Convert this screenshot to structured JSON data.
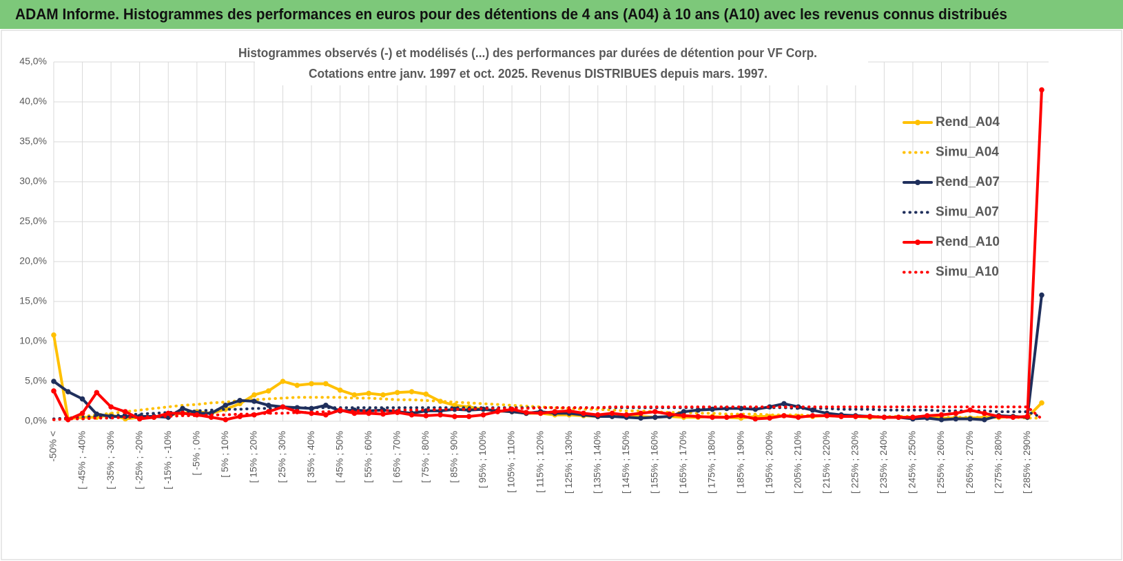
{
  "header": {
    "title": "ADAM Informe. Histogrammes des performances en euros pour des détentions de 4 ans (A04) à 10 ans (A10) avec les revenus connus distribués"
  },
  "chart_data": {
    "type": "line",
    "title": "Histogrammes observés (-) et modélisés (...) des performances par durées de détention pour VF Corp.",
    "subtitle": "Cotations entre janv. 1997 et oct. 2025.  Revenus DISTRIBUES depuis mars. 1997.",
    "categories": [
      "-50% <",
      null,
      "[ -45% ; -40%",
      null,
      "[ -35% ; -30%",
      null,
      "[ -25% ; -20%",
      null,
      "[ -15% ; -10%",
      null,
      "[ -5% ; 0%",
      null,
      "[ 5% ; 10%",
      null,
      "[ 15% ; 20%",
      null,
      "[ 25% ; 30%",
      null,
      "[ 35% ; 40%",
      null,
      "[ 45% ; 50%",
      null,
      "[ 55% ; 60%",
      null,
      "[ 65% ; 70%",
      null,
      "[ 75% ; 80%",
      null,
      "[ 85% ; 90%",
      null,
      "[ 95% ; 100%",
      null,
      "[ 105% ; 110%",
      null,
      "[ 115% ; 120%",
      null,
      "[ 125% ; 130%",
      null,
      "[ 135% ; 140%",
      null,
      "[ 145% ; 150%",
      null,
      "[ 155% ; 160%",
      null,
      "[ 165% ; 170%",
      null,
      "[ 175% ; 180%",
      null,
      "[ 185% ; 190%",
      null,
      "[ 195% ; 200%",
      null,
      "[ 205% ; 210%",
      null,
      "[ 215% ; 220%",
      null,
      "[ 225% ; 230%",
      null,
      "[ 235% ; 240%",
      null,
      "[ 245% ; 250%",
      null,
      "[ 255% ; 260%",
      null,
      "[ 265% ; 270%",
      null,
      "[ 275% ; 280%",
      null,
      "[ 285% ; 290%",
      null
    ],
    "ylim": [
      0,
      45
    ],
    "yticks": [
      {
        "value": 0,
        "label": "0,0%"
      },
      {
        "value": 5,
        "label": "5,0%"
      },
      {
        "value": 10,
        "label": "10,0%"
      },
      {
        "value": 15,
        "label": "15,0%"
      },
      {
        "value": 20,
        "label": "20,0%"
      },
      {
        "value": 25,
        "label": "25,0%"
      },
      {
        "value": 30,
        "label": "30,0%"
      },
      {
        "value": 35,
        "label": "35,0%"
      },
      {
        "value": 40,
        "label": "40,0%"
      },
      {
        "value": 45,
        "label": "45,0%"
      }
    ],
    "grid": true,
    "legend": "right",
    "series": [
      {
        "name": "Rend_A04",
        "color": "#ffc000",
        "line_style": "solid",
        "marker": true,
        "values": [
          10.8,
          0.3,
          0.5,
          0.5,
          0.8,
          0.3,
          0.5,
          0.5,
          0.8,
          1.0,
          1.2,
          1.0,
          1.5,
          2.2,
          3.3,
          3.8,
          5.0,
          4.5,
          4.7,
          4.7,
          3.9,
          3.3,
          3.5,
          3.3,
          3.6,
          3.7,
          3.4,
          2.5,
          2.0,
          1.8,
          1.5,
          1.3,
          1.2,
          1.0,
          1.0,
          0.8,
          0.8,
          0.7,
          0.6,
          0.6,
          0.7,
          0.6,
          0.5,
          0.6,
          0.5,
          0.5,
          0.6,
          0.5,
          0.4,
          0.6,
          0.6,
          0.7,
          0.6,
          0.6,
          0.7,
          0.6,
          0.6,
          0.5,
          0.5,
          0.5,
          0.5,
          0.5,
          0.4,
          0.4,
          0.4,
          0.5,
          0.5,
          0.6,
          0.5,
          2.3
        ]
      },
      {
        "name": "Simu_A04",
        "color": "#ffc000",
        "line_style": "dotted",
        "marker": false,
        "values": [
          0.2,
          0.4,
          0.6,
          0.8,
          1.0,
          1.2,
          1.4,
          1.6,
          1.8,
          2.0,
          2.1,
          2.3,
          2.4,
          2.6,
          2.7,
          2.8,
          2.9,
          3.0,
          3.0,
          3.0,
          3.0,
          2.9,
          2.9,
          2.8,
          2.7,
          2.7,
          2.6,
          2.5,
          2.4,
          2.3,
          2.2,
          2.1,
          2.0,
          1.9,
          1.8,
          1.7,
          1.6,
          1.5,
          1.5,
          1.4,
          1.3,
          1.3,
          1.2,
          1.1,
          1.1,
          1.0,
          1.0,
          0.9,
          0.9,
          0.9,
          0.8,
          0.8,
          0.8,
          0.7,
          0.7,
          0.7,
          0.7,
          0.6,
          0.6,
          0.6,
          0.6,
          0.6,
          0.5,
          0.5,
          0.5,
          0.5,
          0.5,
          0.5,
          0.4,
          0.4
        ]
      },
      {
        "name": "Rend_A07",
        "color": "#1f2f5c",
        "line_style": "solid",
        "marker": true,
        "values": [
          5.0,
          3.7,
          2.8,
          0.9,
          0.6,
          0.6,
          0.6,
          0.6,
          0.5,
          1.6,
          1.0,
          1.0,
          2.0,
          2.6,
          2.5,
          2.0,
          1.8,
          1.7,
          1.6,
          2.0,
          1.3,
          1.4,
          1.3,
          1.4,
          1.2,
          1.0,
          1.3,
          1.3,
          1.5,
          1.4,
          1.5,
          1.3,
          1.2,
          1.0,
          1.2,
          1.0,
          1.0,
          0.8,
          0.6,
          0.6,
          0.5,
          0.4,
          0.5,
          0.6,
          1.2,
          1.4,
          1.5,
          1.6,
          1.6,
          1.5,
          1.8,
          2.2,
          1.8,
          1.4,
          1.0,
          0.8,
          0.7,
          0.6,
          0.5,
          0.5,
          0.3,
          0.4,
          0.2,
          0.3,
          0.3,
          0.2,
          0.7,
          0.6,
          0.5,
          15.8
        ]
      },
      {
        "name": "Simu_A07",
        "color": "#1f2f5c",
        "line_style": "dotted",
        "marker": false,
        "values": [
          0.3,
          0.4,
          0.5,
          0.6,
          0.7,
          0.8,
          0.9,
          1.0,
          1.1,
          1.2,
          1.3,
          1.4,
          1.5,
          1.5,
          1.6,
          1.6,
          1.7,
          1.7,
          1.7,
          1.7,
          1.7,
          1.7,
          1.7,
          1.7,
          1.7,
          1.7,
          1.7,
          1.7,
          1.7,
          1.7,
          1.7,
          1.7,
          1.7,
          1.7,
          1.7,
          1.7,
          1.7,
          1.7,
          1.7,
          1.7,
          1.7,
          1.7,
          1.7,
          1.7,
          1.7,
          1.7,
          1.7,
          1.7,
          1.7,
          1.7,
          1.7,
          1.7,
          1.6,
          1.6,
          1.6,
          1.5,
          1.5,
          1.5,
          1.4,
          1.4,
          1.4,
          1.4,
          1.3,
          1.3,
          1.3,
          1.3,
          1.2,
          1.2,
          1.2,
          0.5
        ]
      },
      {
        "name": "Rend_A10",
        "color": "#ff0000",
        "line_style": "solid",
        "marker": true,
        "values": [
          3.8,
          0.2,
          1.0,
          3.6,
          1.8,
          1.2,
          0.3,
          0.5,
          1.0,
          1.0,
          0.8,
          0.5,
          0.2,
          0.6,
          0.8,
          1.2,
          1.8,
          1.2,
          1.0,
          0.8,
          1.4,
          1.0,
          1.0,
          0.9,
          1.1,
          0.8,
          0.7,
          0.8,
          0.6,
          0.6,
          0.8,
          1.2,
          1.5,
          1.1,
          1.0,
          1.2,
          1.3,
          1.0,
          0.8,
          1.0,
          0.8,
          1.0,
          1.2,
          0.9,
          0.7,
          0.6,
          0.5,
          0.5,
          0.7,
          0.3,
          0.4,
          0.7,
          0.5,
          0.7,
          0.7,
          0.6,
          0.6,
          0.6,
          0.5,
          0.5,
          0.5,
          0.7,
          0.8,
          1.0,
          1.4,
          1.0,
          0.6,
          0.5,
          0.6,
          41.5
        ]
      },
      {
        "name": "Simu_A10",
        "color": "#ff0000",
        "line_style": "dotted",
        "marker": false,
        "values": [
          0.2,
          0.3,
          0.3,
          0.4,
          0.4,
          0.5,
          0.5,
          0.6,
          0.6,
          0.7,
          0.7,
          0.8,
          0.8,
          0.9,
          0.9,
          1.0,
          1.0,
          1.1,
          1.1,
          1.2,
          1.2,
          1.3,
          1.3,
          1.3,
          1.4,
          1.4,
          1.4,
          1.5,
          1.5,
          1.5,
          1.6,
          1.6,
          1.6,
          1.6,
          1.7,
          1.7,
          1.7,
          1.7,
          1.7,
          1.8,
          1.8,
          1.8,
          1.8,
          1.8,
          1.8,
          1.8,
          1.8,
          1.8,
          1.8,
          1.8,
          1.8,
          1.8,
          1.8,
          1.8,
          1.8,
          1.8,
          1.8,
          1.8,
          1.8,
          1.8,
          1.8,
          1.8,
          1.8,
          1.8,
          1.8,
          1.8,
          1.8,
          1.8,
          1.8,
          0.3
        ]
      }
    ]
  }
}
